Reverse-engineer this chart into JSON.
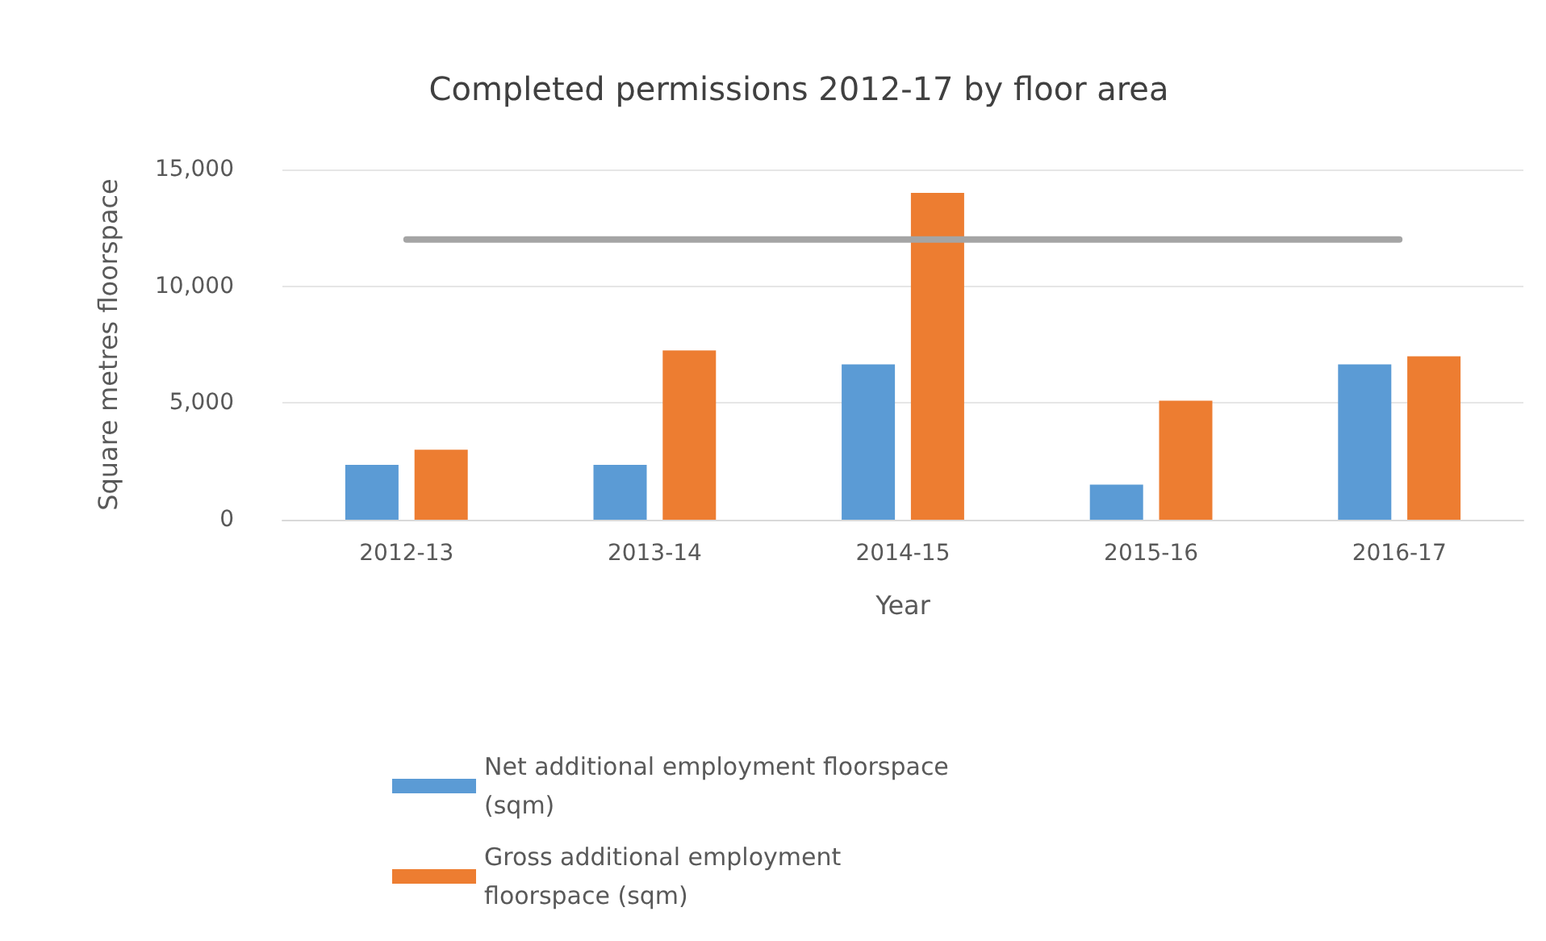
{
  "chart_data": {
    "type": "bar",
    "title": "Completed permissions 2012-17 by floor area",
    "xlabel": "Year",
    "ylabel": "Square metres floorspace",
    "categories": [
      "2012-13",
      "2013-14",
      "2014-15",
      "2015-16",
      "2016-17"
    ],
    "series": [
      {
        "name": "Net additional employment floorspace (sqm)",
        "color": "#5b9bd5",
        "values": [
          2350,
          2350,
          6650,
          1500,
          6650
        ]
      },
      {
        "name": "Gross additional employment floorspace (sqm)",
        "color": "#ed7d31",
        "values": [
          3000,
          7250,
          14000,
          5100,
          7000
        ]
      },
      {
        "type": "line",
        "color": "#a5a5a5",
        "values": [
          12000,
          12000,
          12000,
          12000,
          12000
        ]
      }
    ],
    "ylim": [
      0,
      15000
    ],
    "yticks": [
      0,
      {
        "value": 5000,
        "label": "5,000"
      },
      {
        "value": 10000,
        "label": "10,000"
      },
      {
        "value": 15000,
        "label": "15,000"
      }
    ],
    "grid": "y",
    "legend": "bottom",
    "marker": "none",
    "line_style": "solid"
  }
}
